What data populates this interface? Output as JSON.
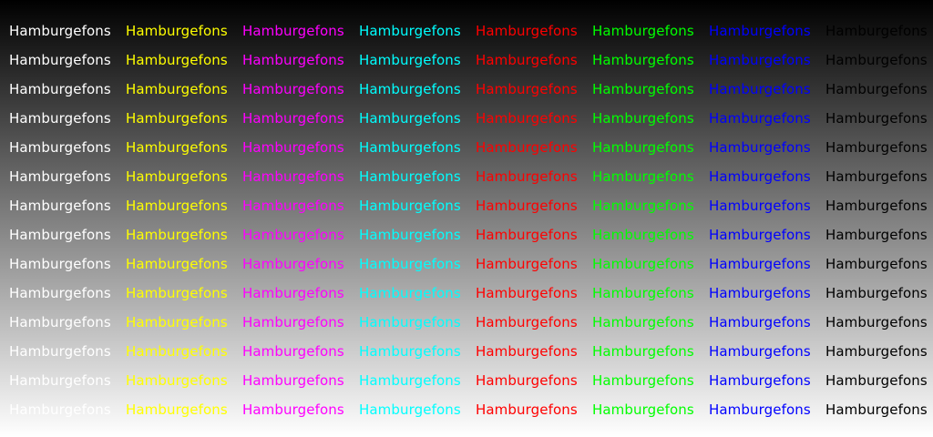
{
  "sample_text": "Hamburgefons",
  "rows": 14,
  "columns": [
    {
      "name": "white",
      "color": "#ffffff"
    },
    {
      "name": "yellow",
      "color": "#ffff00"
    },
    {
      "name": "magenta",
      "color": "#ff00ff"
    },
    {
      "name": "cyan",
      "color": "#00ffff"
    },
    {
      "name": "red",
      "color": "#ff0000"
    },
    {
      "name": "green",
      "color": "#00ff00"
    },
    {
      "name": "blue",
      "color": "#0000ff"
    },
    {
      "name": "black",
      "color": "#000000"
    }
  ],
  "background": {
    "top": "#000000",
    "bottom": "#ffffff"
  }
}
